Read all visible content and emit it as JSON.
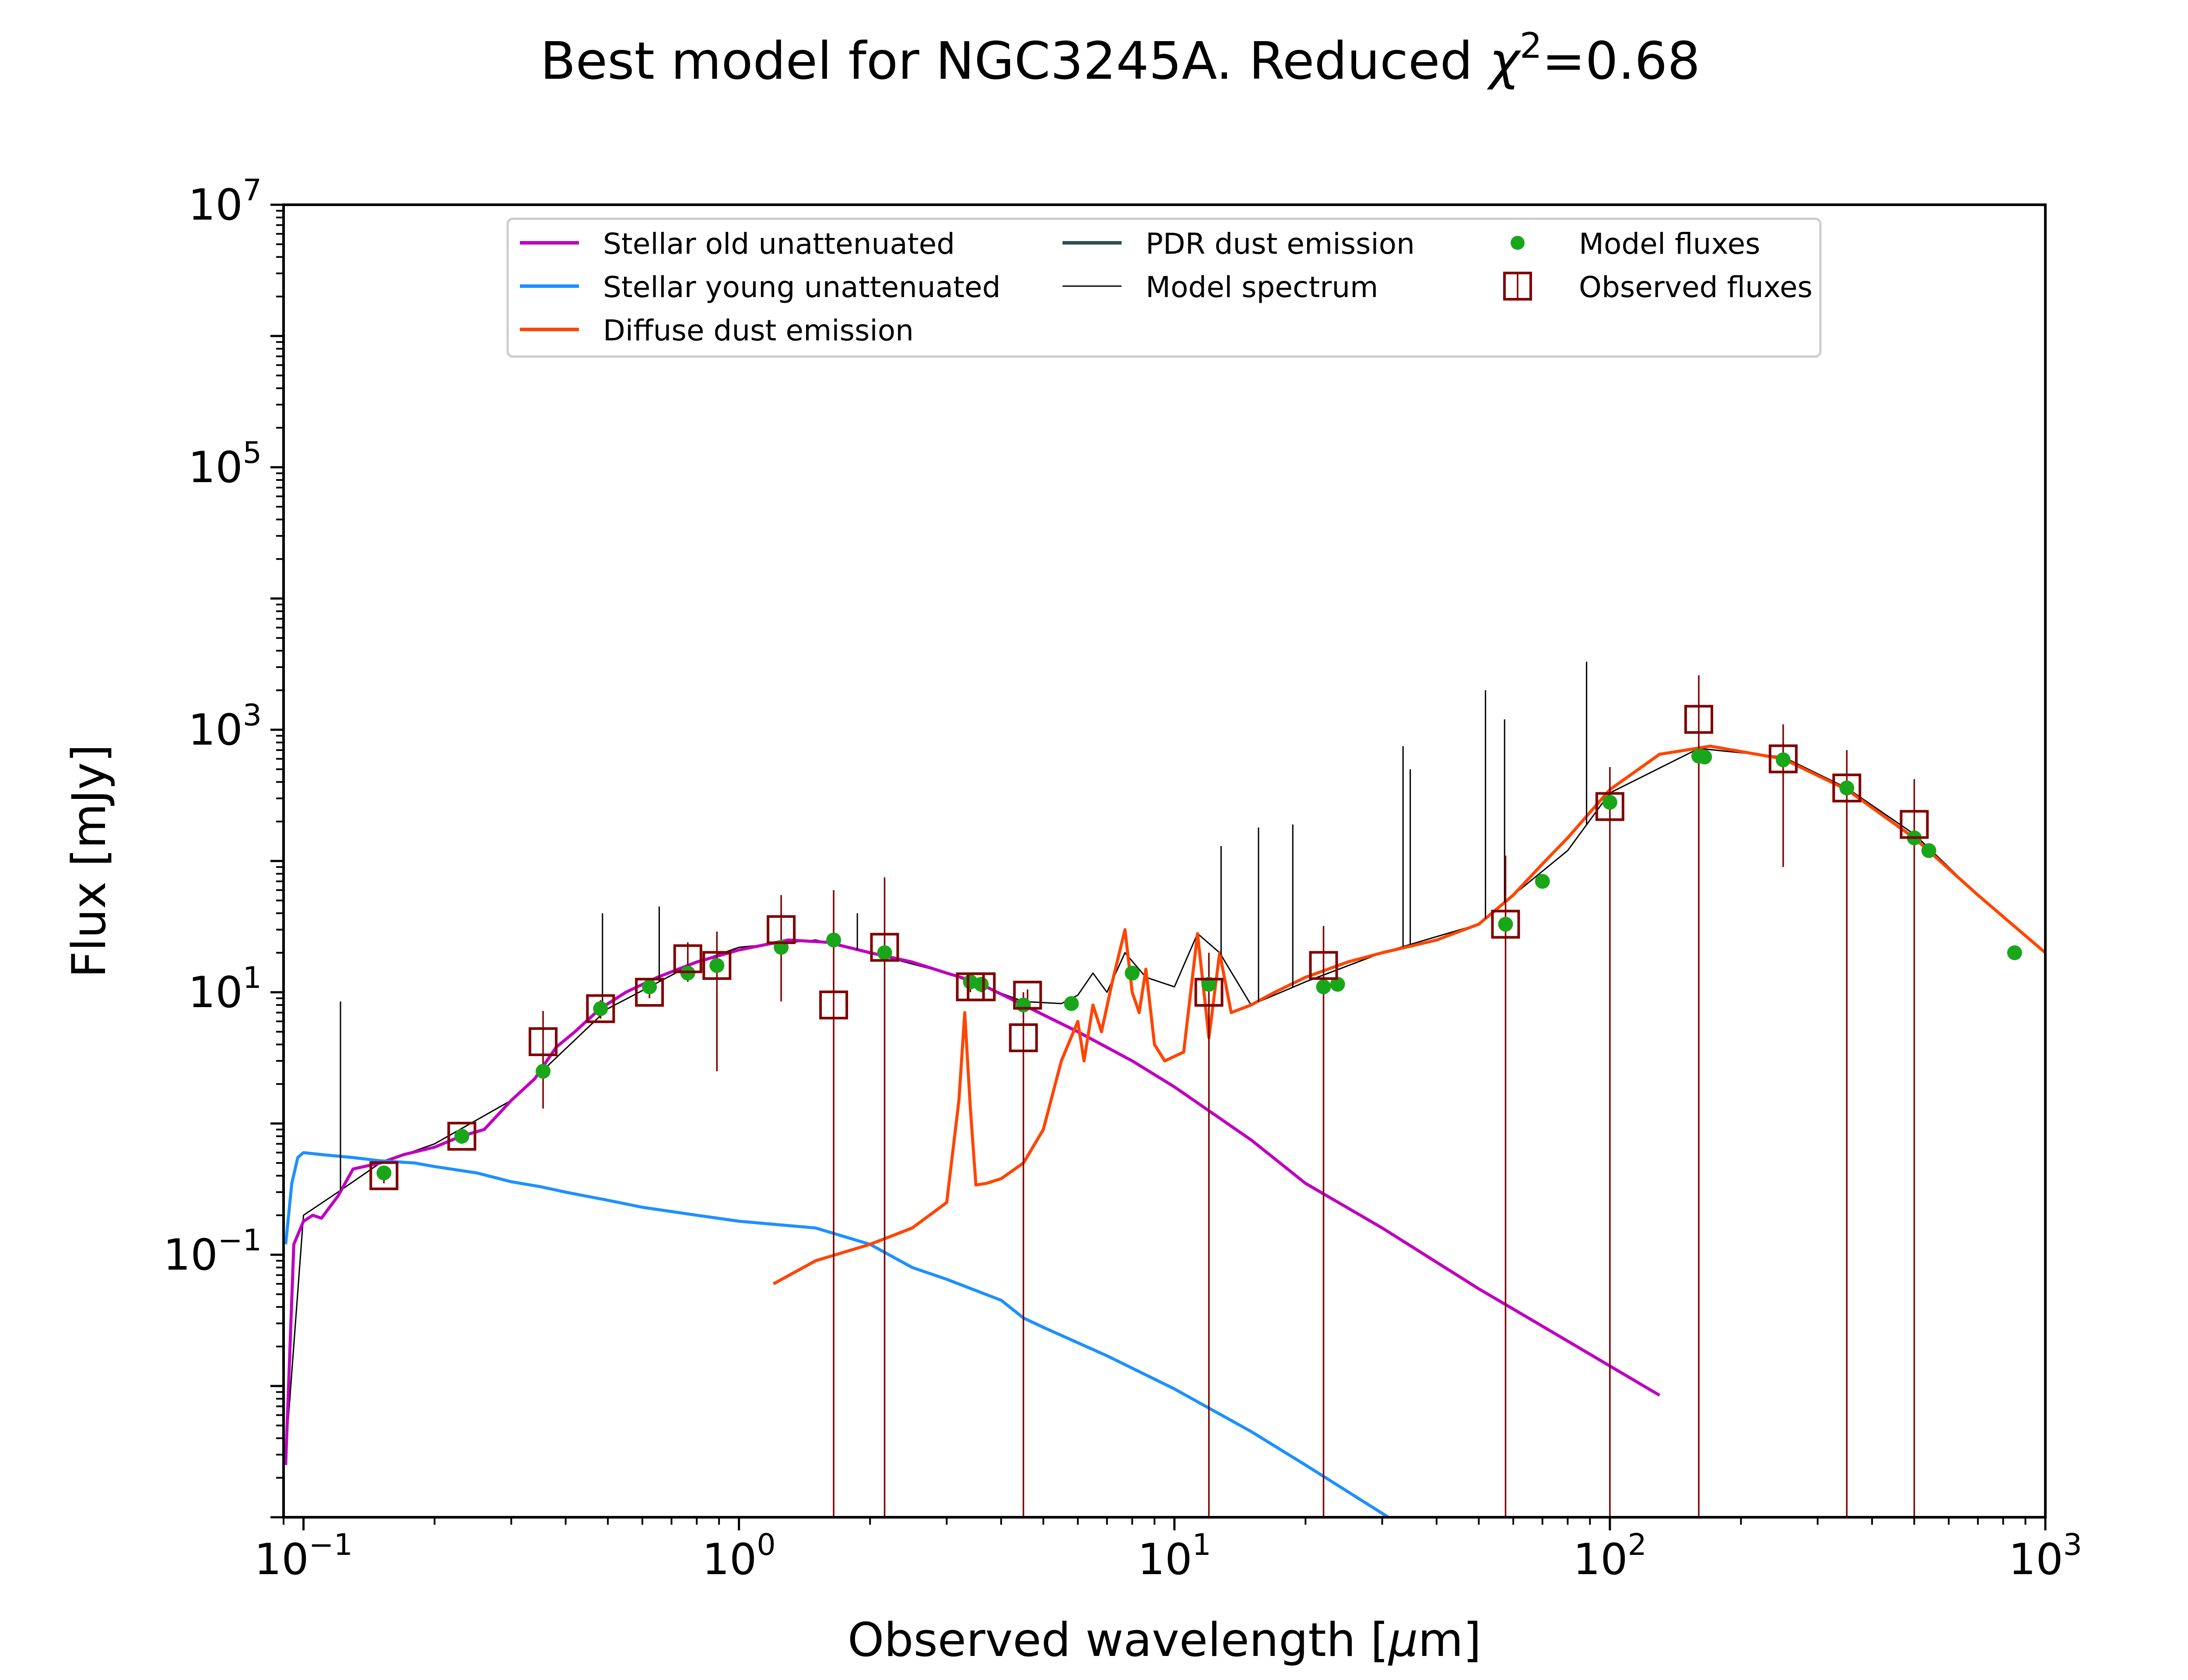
{
  "chart_data": {
    "type": "line",
    "title": "Best model for NGC3245A. Reduced",
    "title_symbol": "χ",
    "title_sup": "2",
    "title_value": "=0.68",
    "xlabel_pre": "Observed wavelength [",
    "xlabel_mu": "μ",
    "xlabel_post": "m]",
    "ylabel": "Flux [mJy]",
    "xscale": "log",
    "yscale": "log",
    "xlim": [
      0.09,
      1000
    ],
    "ylim": [
      0.001,
      10000000
    ],
    "grid": false,
    "legend_position": "top-center",
    "x_ticks": [
      {
        "value": 0.1,
        "base": "10",
        "exp": "−1"
      },
      {
        "value": 1,
        "base": "10",
        "exp": "0"
      },
      {
        "value": 10,
        "base": "10",
        "exp": "1"
      },
      {
        "value": 100,
        "base": "10",
        "exp": "2"
      },
      {
        "value": 1000,
        "base": "10",
        "exp": "3"
      }
    ],
    "y_ticks": [
      {
        "value": 0.1,
        "base": "10",
        "exp": "−1"
      },
      {
        "value": 10,
        "base": "10",
        "exp": "1"
      },
      {
        "value": 1000,
        "base": "10",
        "exp": "3"
      },
      {
        "value": 100000,
        "base": "10",
        "exp": "5"
      },
      {
        "value": 10000000,
        "base": "10",
        "exp": "7"
      }
    ],
    "series": [
      {
        "name": "Stellar old unattenuated",
        "color": "#bf00bf",
        "x": [
          0.091,
          0.095,
          0.1,
          0.105,
          0.11,
          0.12,
          0.13,
          0.15,
          0.17,
          0.2,
          0.23,
          0.26,
          0.3,
          0.34,
          0.38,
          0.42,
          0.48,
          0.55,
          0.65,
          0.8,
          1.0,
          1.3,
          1.6,
          2.0,
          2.5,
          3.0,
          3.5,
          4.5,
          6,
          8,
          10,
          15,
          20,
          30,
          50,
          80,
          130
        ],
        "y": [
          0.0025,
          0.12,
          0.18,
          0.2,
          0.19,
          0.28,
          0.45,
          0.5,
          0.58,
          0.66,
          0.8,
          0.9,
          1.5,
          2.2,
          3.8,
          5.0,
          7.5,
          10,
          13,
          17,
          21,
          25,
          24,
          20,
          17,
          14,
          12,
          8,
          5,
          3,
          1.9,
          0.75,
          0.35,
          0.16,
          0.055,
          0.022,
          0.0085
        ]
      },
      {
        "name": "Stellar young unattenuated",
        "color": "#1e90ff",
        "x": [
          0.091,
          0.094,
          0.097,
          0.1,
          0.11,
          0.13,
          0.15,
          0.18,
          0.2,
          0.25,
          0.3,
          0.35,
          0.4,
          0.5,
          0.6,
          0.8,
          1.0,
          1.5,
          2.0,
          2.5,
          3.0,
          4.0,
          4.5,
          5.0,
          7.0,
          10,
          15,
          20,
          31
        ],
        "y": [
          0.12,
          0.35,
          0.55,
          0.6,
          0.58,
          0.55,
          0.52,
          0.5,
          0.47,
          0.42,
          0.36,
          0.33,
          0.3,
          0.26,
          0.23,
          0.2,
          0.18,
          0.16,
          0.12,
          0.08,
          0.065,
          0.045,
          0.033,
          0.028,
          0.017,
          0.0095,
          0.0045,
          0.0025,
          0.001
        ]
      },
      {
        "name": "Diffuse dust emission",
        "color": "#ff4500",
        "x": [
          1.2,
          1.5,
          2.0,
          2.5,
          3.0,
          3.2,
          3.3,
          3.4,
          3.5,
          3.7,
          4.0,
          4.5,
          5.0,
          5.5,
          6.0,
          6.2,
          6.5,
          6.8,
          7.2,
          7.7,
          8.0,
          8.3,
          8.6,
          9.0,
          9.5,
          10.5,
          11.3,
          12.0,
          12.7,
          13.5,
          15,
          17,
          20,
          25,
          30,
          40,
          50,
          60,
          70,
          80,
          100,
          130,
          170,
          250,
          350,
          500,
          700,
          1000
        ],
        "y": [
          0.06,
          0.09,
          0.12,
          0.16,
          0.25,
          1.5,
          7,
          1.3,
          0.34,
          0.35,
          0.38,
          0.5,
          0.9,
          3.0,
          6.0,
          3.0,
          8.0,
          5.0,
          12.0,
          30,
          10,
          7,
          15,
          4.0,
          3.0,
          3.5,
          28,
          4.5,
          20,
          7,
          8,
          10,
          13,
          17,
          20,
          25,
          33,
          55,
          95,
          150,
          350,
          650,
          750,
          600,
          350,
          150,
          55,
          20
        ]
      },
      {
        "name": "PDR dust emission",
        "color": "#2f4f4f",
        "x": [],
        "y": []
      },
      {
        "name": "Model spectrum",
        "color": "#000000",
        "x": [
          0.091,
          0.1,
          0.12,
          0.15,
          0.2,
          0.3,
          0.5,
          0.8,
          1.0,
          1.5,
          2.0,
          3.0,
          4.5,
          5.5,
          6.0,
          6.5,
          7.0,
          7.7,
          8.6,
          10,
          11.3,
          12.7,
          15,
          20,
          30,
          50,
          60,
          80,
          100,
          160,
          250,
          350,
          500,
          700,
          1000
        ],
        "y": [
          0.003,
          0.2,
          0.3,
          0.5,
          0.7,
          1.5,
          7.5,
          17,
          22,
          25,
          20,
          14,
          8.5,
          8.2,
          9.5,
          14,
          10,
          20,
          13,
          11,
          28,
          20,
          8,
          12,
          20,
          33,
          55,
          120,
          330,
          720,
          620,
          360,
          160,
          55,
          20
        ]
      }
    ],
    "emission_lines": [
      {
        "x": 0.1216,
        "y_top": 8.5
      },
      {
        "x": 0.486,
        "y_top": 40
      },
      {
        "x": 0.656,
        "y_top": 45
      },
      {
        "x": 1.87,
        "y_top": 40
      },
      {
        "x": 12.8,
        "y_top": 130
      },
      {
        "x": 15.6,
        "y_top": 180
      },
      {
        "x": 18.7,
        "y_top": 190
      },
      {
        "x": 33.5,
        "y_top": 750
      },
      {
        "x": 34.8,
        "y_top": 500
      },
      {
        "x": 51.8,
        "y_top": 2000
      },
      {
        "x": 57.3,
        "y_top": 1200
      },
      {
        "x": 88.4,
        "y_top": 3300
      }
    ],
    "model_fluxes": {
      "name": "Model fluxes",
      "color": "#1aa61a",
      "x": [
        0.153,
        0.231,
        0.355,
        0.481,
        0.623,
        0.763,
        0.89,
        1.25,
        1.65,
        2.16,
        3.4,
        3.6,
        4.5,
        5.8,
        8.0,
        12,
        22,
        23.7,
        57.6,
        70,
        100,
        160,
        165,
        250,
        350,
        500,
        540,
        850
      ],
      "y": [
        0.42,
        0.8,
        2.5,
        7.5,
        11,
        14,
        16,
        22,
        25,
        20,
        12,
        11.5,
        8,
        8.2,
        14,
        11.5,
        11,
        11.5,
        33,
        70,
        280,
        630,
        620,
        590,
        360,
        150,
        120,
        20
      ]
    },
    "observed_fluxes": {
      "name": "Observed fluxes",
      "color": "#800000",
      "points": [
        {
          "x": 0.153,
          "y": 0.4,
          "lo": 0.35,
          "hi": 0.45
        },
        {
          "x": 0.231,
          "y": 0.8,
          "lo": 0.7,
          "hi": 0.9
        },
        {
          "x": 0.355,
          "y": 4.2,
          "lo": 1.3,
          "hi": 7.2
        },
        {
          "x": 0.481,
          "y": 7.5,
          "lo": 6.3,
          "hi": 8.7
        },
        {
          "x": 0.623,
          "y": 10,
          "lo": 9,
          "hi": 11
        },
        {
          "x": 0.763,
          "y": 18,
          "lo": 12,
          "hi": 24
        },
        {
          "x": 0.89,
          "y": 16,
          "lo": 2.5,
          "hi": 29
        },
        {
          "x": 1.25,
          "y": 30,
          "lo": 8.5,
          "hi": 55
        },
        {
          "x": 1.65,
          "y": 8,
          "lo": 0.001,
          "hi": 60
        },
        {
          "x": 2.16,
          "y": 22,
          "lo": 0.001,
          "hi": 75
        },
        {
          "x": 3.4,
          "y": 11,
          "lo": 10,
          "hi": 12
        },
        {
          "x": 3.6,
          "y": 11,
          "lo": 10,
          "hi": 12
        },
        {
          "x": 4.5,
          "y": 4.5,
          "lo": 0.001,
          "hi": 10
        },
        {
          "x": 4.6,
          "y": 9.5,
          "lo": 8.5,
          "hi": 10.5
        },
        {
          "x": 12,
          "y": 10,
          "lo": 0.001,
          "hi": 20
        },
        {
          "x": 22,
          "y": 16,
          "lo": 0.001,
          "hi": 32
        },
        {
          "x": 57.6,
          "y": 33,
          "lo": 0.001,
          "hi": 110
        },
        {
          "x": 100,
          "y": 260,
          "lo": 0.001,
          "hi": 520
        },
        {
          "x": 160,
          "y": 1200,
          "lo": 0.001,
          "hi": 2600
        },
        {
          "x": 250,
          "y": 600,
          "lo": 90,
          "hi": 1100
        },
        {
          "x": 350,
          "y": 360,
          "lo": 0.001,
          "hi": 700
        },
        {
          "x": 500,
          "y": 190,
          "lo": 0.001,
          "hi": 420
        }
      ]
    }
  }
}
